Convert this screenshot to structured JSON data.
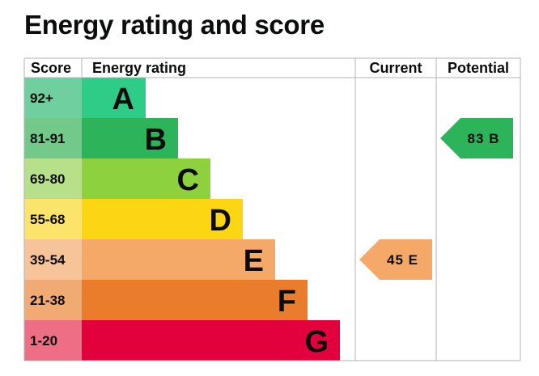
{
  "page": {
    "title": "Energy rating and score"
  },
  "chart_data": {
    "type": "bar",
    "headers": {
      "score": "Score",
      "rating": "Energy rating",
      "current": "Current",
      "potential": "Potential"
    },
    "bands": [
      {
        "score": "92+",
        "letter": "A",
        "color": "#2ecc86",
        "score_bg": "#6fcf9f"
      },
      {
        "score": "81-91",
        "letter": "B",
        "color": "#2db35a",
        "score_bg": "#72c98a"
      },
      {
        "score": "69-80",
        "letter": "C",
        "color": "#8dd13f",
        "score_bg": "#b6e08a"
      },
      {
        "score": "55-68",
        "letter": "D",
        "color": "#fcd612",
        "score_bg": "#fce46a"
      },
      {
        "score": "39-54",
        "letter": "E",
        "color": "#f5a969",
        "score_bg": "#f7c49a"
      },
      {
        "score": "21-38",
        "letter": "F",
        "color": "#ea7d2c",
        "score_bg": "#f0aa72"
      },
      {
        "score": "1-20",
        "letter": "G",
        "color": "#e2013c",
        "score_bg": "#ee6e86"
      }
    ],
    "current": {
      "score": 45,
      "letter": "E",
      "label": "45 E",
      "color": "#f5a969"
    },
    "potential": {
      "score": 83,
      "letter": "B",
      "label": "83 B",
      "color": "#2db35a"
    }
  }
}
